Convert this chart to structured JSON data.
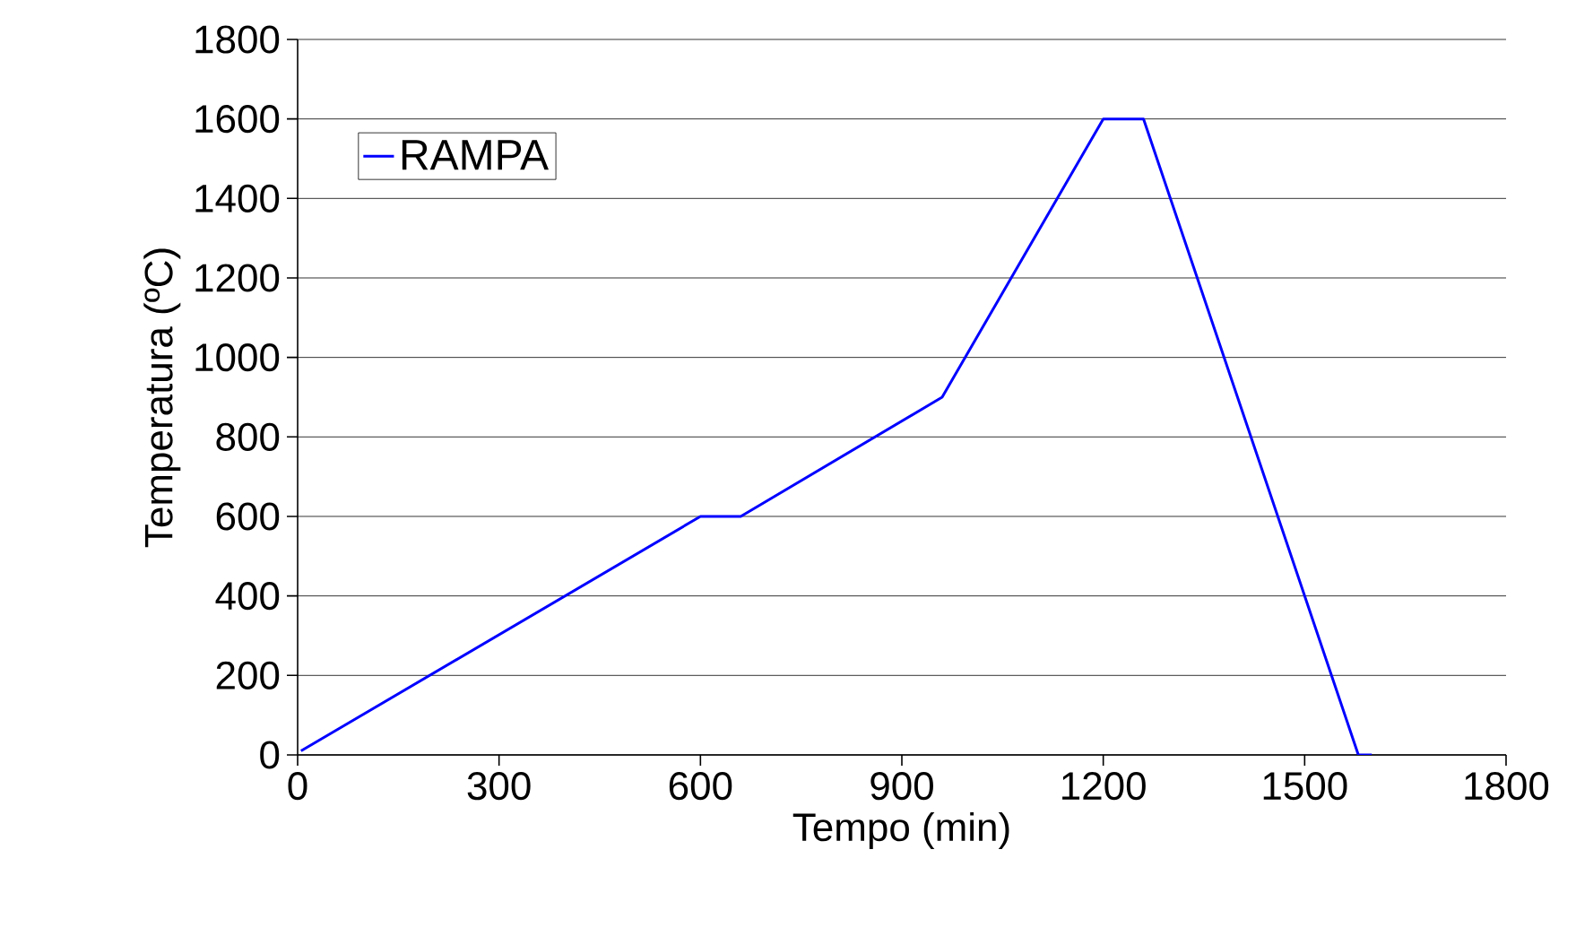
{
  "chart_data": {
    "type": "line",
    "xlabel": "Tempo (min)",
    "ylabel": "Temperatura (ºC)",
    "series": [
      {
        "name": "RAMPA",
        "color": "#0000ff",
        "x": [
          5,
          600,
          660,
          960,
          1200,
          1260,
          1580,
          1600
        ],
        "values": [
          10,
          600,
          600,
          900,
          1600,
          1600,
          0,
          0
        ]
      }
    ],
    "xlim": [
      0,
      1800
    ],
    "xticks": [
      0,
      300,
      600,
      900,
      1200,
      1500,
      1800
    ],
    "ylim": [
      0,
      1800
    ],
    "yticks": [
      0,
      200,
      400,
      600,
      800,
      1000,
      1200,
      1400,
      1600,
      1800
    ],
    "grid": "y",
    "legend": "top left",
    "marker": "none",
    "line_style": "solid"
  }
}
